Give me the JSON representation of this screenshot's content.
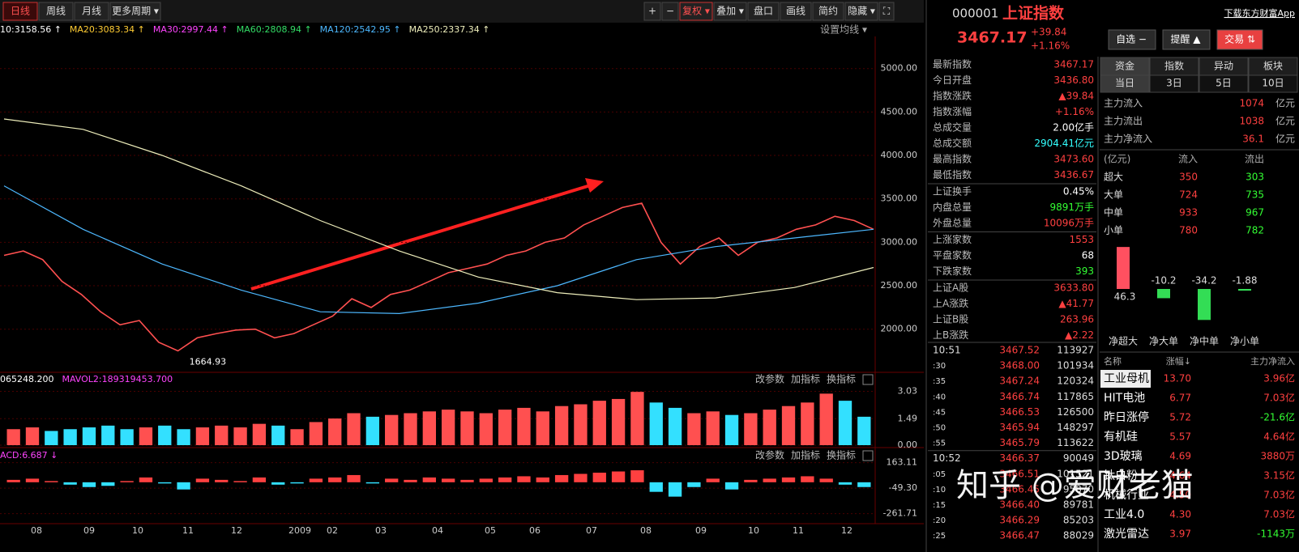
{
  "toolbar": {
    "periods": [
      "日线",
      "周线",
      "月线",
      "更多周期 ▾"
    ],
    "tools": [
      "+",
      "−",
      "复权 ▾",
      "叠加 ▾",
      "盘口",
      "画线",
      "简约",
      "隐藏 ▾",
      "⛶"
    ]
  },
  "chart_data": [
    {
      "type": "line",
      "legend": [
        {
          "text": "10:3158.56 ↑",
          "color": "#ffffff"
        },
        {
          "text": "MA20:3083.34 ↑",
          "color": "#ffcc33"
        },
        {
          "text": "MA30:2997.44 ↑",
          "color": "#ff44ff"
        },
        {
          "text": "MA60:2808.94 ↑",
          "color": "#33dd66"
        },
        {
          "text": "MA120:2542.95 ↑",
          "color": "#4db8ff"
        },
        {
          "text": "MA250:2337.34 ↑",
          "color": "#eeeebb"
        }
      ],
      "settings_label": "设置均线 ▾",
      "annotation": "1664.93",
      "xticks": [
        "08",
        "09",
        "10",
        "11",
        "12",
        "2009",
        "02",
        "03",
        "04",
        "05",
        "06",
        "07",
        "08",
        "09",
        "10",
        "11",
        "12"
      ],
      "ylim": [
        1550,
        5370
      ],
      "yticks": [
        {
          "value": 5000,
          "label": "5000.00"
        },
        {
          "value": 4500,
          "label": "4500.00"
        },
        {
          "value": 4000,
          "label": "4000.00"
        },
        {
          "value": 3500,
          "label": "3500.00"
        },
        {
          "value": 3000,
          "label": "3000.00"
        },
        {
          "value": 2500,
          "label": "2500.00"
        },
        {
          "value": 2000,
          "label": "2000.00"
        }
      ],
      "series": [
        {
          "name": "收盘",
          "color": "#ff5050",
          "values": [
            2850,
            2900,
            2800,
            2550,
            2400,
            2200,
            2050,
            2100,
            1850,
            1750,
            1900,
            1950,
            1990,
            2000,
            1900,
            1950,
            2050,
            2150,
            2350,
            2250,
            2400,
            2450,
            2550,
            2650,
            2700,
            2750,
            2850,
            2900,
            3000,
            3050,
            3200,
            3300,
            3400,
            3450,
            3000,
            2750,
            2950,
            3050,
            2850,
            3000,
            3050,
            3150,
            3200,
            3300,
            3250,
            3150
          ]
        },
        {
          "name": "MA120",
          "color": "#4db8ff",
          "values": [
            3650,
            3150,
            2750,
            2450,
            2200,
            2180,
            2300,
            2500,
            2800,
            2950,
            3050,
            3150
          ]
        },
        {
          "name": "MA250",
          "color": "#eeeebb",
          "values": [
            4420,
            4300,
            4000,
            3650,
            3250,
            2900,
            2600,
            2420,
            2340,
            2360,
            2480,
            2710
          ]
        }
      ]
    },
    {
      "type": "bar",
      "legend": [
        {
          "text": "065248.200",
          "color": "#ffffff"
        },
        {
          "text": "MAVOL2:189319453.700",
          "color": "#ff44ff"
        }
      ],
      "controls": [
        "改参数",
        "加指标",
        "换指标"
      ],
      "ylim": [
        0,
        4.1
      ],
      "yticks": [
        3.03,
        1.49,
        {
          "value": 0,
          "label": "0.00"
        }
      ],
      "values": [
        0.9,
        1.0,
        0.8,
        0.9,
        1.0,
        1.1,
        0.9,
        1.0,
        1.1,
        0.9,
        1.0,
        1.1,
        1.0,
        1.2,
        1.1,
        0.9,
        1.3,
        1.5,
        1.8,
        1.6,
        1.7,
        1.8,
        1.9,
        2.0,
        1.9,
        1.8,
        2.0,
        2.1,
        1.9,
        2.2,
        2.3,
        2.5,
        2.6,
        3.0,
        2.4,
        2.1,
        1.8,
        1.9,
        1.7,
        1.8,
        2.0,
        2.2,
        2.4,
        2.9,
        2.5,
        1.6
      ]
    },
    {
      "type": "bar",
      "legend": [
        {
          "text": "ACD:6.687 ↓",
          "color": "#ff44ff"
        }
      ],
      "controls": [
        "改参数",
        "加指标",
        "换指标"
      ],
      "ylim": [
        -332,
        269
      ],
      "yticks": [
        163.11,
        {
          "value": -49.3,
          "label": "-49.30"
        },
        -261.71
      ],
      "values": [
        20,
        30,
        10,
        -20,
        -40,
        -30,
        10,
        40,
        -10,
        -60,
        30,
        20,
        10,
        40,
        -20,
        -10,
        30,
        40,
        60,
        -10,
        30,
        20,
        40,
        30,
        20,
        30,
        40,
        50,
        40,
        60,
        70,
        80,
        90,
        100,
        -80,
        -120,
        -40,
        30,
        -60,
        20,
        30,
        40,
        50,
        30,
        -20,
        -40
      ]
    }
  ],
  "quote": {
    "code": "000001",
    "name": "上证指数",
    "download": "下载东方财富App",
    "price": "3467.17",
    "change": "+39.84",
    "pct": "+1.16%",
    "buttons": [
      "自选 −",
      "提醒 ▲",
      "交易 ⇅"
    ]
  },
  "quote_rows": [
    {
      "label": "最新指数",
      "value": "3467.17",
      "color": "#ff4040"
    },
    {
      "label": "今日开盘",
      "value": "3436.80",
      "color": "#ff4040"
    },
    {
      "label": "指数涨跌",
      "value": "▲39.84",
      "color": "#ff4040"
    },
    {
      "label": "指数涨幅",
      "value": "+1.16%",
      "color": "#ff4040"
    },
    {
      "label": "总成交量",
      "value": "2.00亿手",
      "color": "#ffffff"
    },
    {
      "label": "总成交额",
      "value": "2904.41亿元",
      "color": "#33ffff"
    },
    {
      "label": "最高指数",
      "value": "3473.60",
      "color": "#ff4040"
    },
    {
      "label": "最低指数",
      "value": "3436.67",
      "color": "#ff4040"
    },
    {
      "label": "上证换手",
      "value": "0.45%",
      "color": "#ffffff"
    },
    {
      "label": "内盘总量",
      "value": "9891万手",
      "color": "#33ff33"
    },
    {
      "label": "外盘总量",
      "value": "10096万手",
      "color": "#ff4040"
    },
    {
      "label": "上涨家数",
      "value": "1553",
      "color": "#ff4040"
    },
    {
      "label": "平盘家数",
      "value": "68",
      "color": "#ffffff"
    },
    {
      "label": "下跌家数",
      "value": "393",
      "color": "#33ff33"
    },
    {
      "label": "上证A股",
      "value": "3633.80",
      "color": "#ff4040"
    },
    {
      "label": "上A涨跌",
      "value": "▲41.77",
      "color": "#ff4040"
    },
    {
      "label": "上证B股",
      "value": "263.96",
      "color": "#ff4040"
    },
    {
      "label": "上B涨跌",
      "value": "▲2.22",
      "color": "#ff4040"
    }
  ],
  "ticks": [
    [
      "10:51",
      "3467.52",
      "113927"
    ],
    [
      ":30",
      "3468.00",
      "101934"
    ],
    [
      ":35",
      "3467.24",
      "120324"
    ],
    [
      ":40",
      "3466.74",
      "117865"
    ],
    [
      ":45",
      "3466.53",
      "126500"
    ],
    [
      ":50",
      "3465.94",
      "148297"
    ],
    [
      ":55",
      "3465.79",
      "113622"
    ],
    [
      "10:52",
      "3466.37",
      "90049"
    ],
    [
      ":05",
      "3466.51",
      "101521"
    ],
    [
      ":10",
      "3466.45",
      "95870"
    ],
    [
      ":15",
      "3466.40",
      "89781"
    ],
    [
      ":20",
      "3466.29",
      "85203"
    ],
    [
      ":25",
      "3466.47",
      "88029"
    ]
  ],
  "fund": {
    "tabs": [
      "资金",
      "指数",
      "异动",
      "板块"
    ],
    "periods": [
      "当日",
      "3日",
      "5日",
      "10日"
    ],
    "flows": [
      [
        "主力流入",
        "1074",
        "亿元"
      ],
      [
        "主力流出",
        "1038",
        "亿元"
      ],
      [
        "主力净流入",
        "36.1",
        "亿元"
      ]
    ],
    "header": [
      "(亿元)",
      "流入",
      "流出"
    ],
    "rows": [
      [
        "超大",
        "350",
        "303"
      ],
      [
        "大单",
        "724",
        "735"
      ],
      [
        "中单",
        "933",
        "967"
      ],
      [
        "小单",
        "780",
        "782"
      ]
    ],
    "net": {
      "categories": [
        "净超大",
        "净大单",
        "净中单",
        "净小单"
      ],
      "values": [
        46.3,
        -10.2,
        -34.2,
        -1.88
      ]
    }
  },
  "sectors": {
    "header": [
      "名称",
      "涨幅↓",
      "主力净流入"
    ],
    "rows": [
      [
        "工业母机",
        "13.70",
        "3.96亿"
      ],
      [
        "HIT电池",
        "6.77",
        "7.03亿"
      ],
      [
        "昨日涨停",
        "5.72",
        "-21.6亿"
      ],
      [
        "有机硅",
        "5.57",
        "4.64亿"
      ],
      [
        "3D玻璃",
        "4.69",
        "3880万"
      ],
      [
        "钛白粉",
        "4.64",
        "3.15亿"
      ],
      [
        "机械行业",
        "4.50",
        "7.03亿"
      ],
      [
        "工业4.0",
        "4.30",
        "7.03亿"
      ],
      [
        "激光雷达",
        "3.97",
        "-1143万"
      ]
    ]
  },
  "watermark": "知乎 @爱财老猫"
}
